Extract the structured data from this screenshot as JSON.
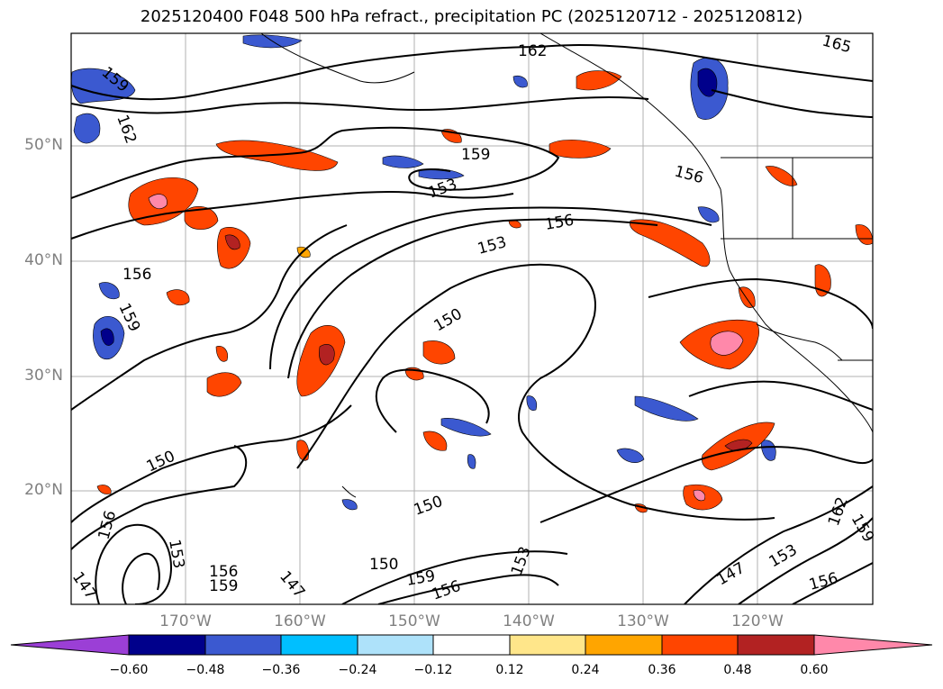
{
  "title": "2025120400 F048 500 hPa refract., precipitation PC (2025120712 - 2025120812)",
  "map": {
    "lat_labels": [
      "50°N",
      "40°N",
      "30°N",
      "20°N"
    ],
    "lon_labels": [
      "170°W",
      "160°W",
      "150°W",
      "140°W",
      "130°W",
      "120°W"
    ],
    "contour_labels": [
      "147",
      "150",
      "153",
      "156",
      "159",
      "162",
      "165"
    ],
    "grid": true
  },
  "colorbar": {
    "ticks": [
      "−0.60",
      "−0.48",
      "−0.36",
      "−0.24",
      "−0.12",
      "0.12",
      "0.24",
      "0.36",
      "0.48",
      "0.60"
    ],
    "colors": [
      "#9b3fd6",
      "#00008b",
      "#3b59d0",
      "#00bfff",
      "#aee2fa",
      "#ffffff",
      "#ffe68a",
      "#ffa500",
      "#ff4500",
      "#b22222",
      "#ff88aa"
    ],
    "extend": "both"
  }
}
